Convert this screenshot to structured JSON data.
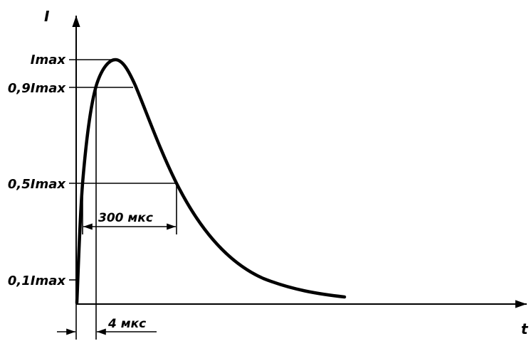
{
  "axes": {
    "y_label": "I",
    "x_label": "t"
  },
  "levels": {
    "max": "Imax",
    "p90": "0,9Imax",
    "p50": "0,5Imax",
    "p10": "0,1Imax"
  },
  "dimensions": {
    "half_width": "300 мкс",
    "front_time": "4 мкс"
  },
  "colors": {
    "ink": "#000000",
    "background": "#ffffff"
  }
}
